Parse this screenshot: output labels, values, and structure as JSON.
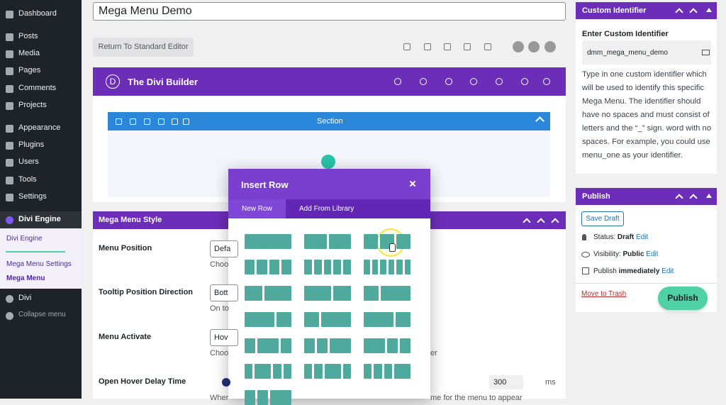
{
  "sidebar": {
    "items": [
      "Dashboard",
      "Posts",
      "Media",
      "Pages",
      "Comments",
      "Projects",
      "Appearance",
      "Plugins",
      "Users",
      "Tools",
      "Settings"
    ],
    "active": "Divi Engine",
    "submenu": [
      "Divi Engine",
      "Mega Menu Settings",
      "Mega Menu"
    ],
    "after": [
      "Divi",
      "Collapse menu"
    ]
  },
  "editor": {
    "post_title": "Mega Menu Demo",
    "return_button": "Return To Standard Editor",
    "builder_logo": "D",
    "builder_title": "The Divi Builder",
    "section_label": "Section"
  },
  "mega_menu_style": {
    "title": "Mega Menu Style",
    "fields": [
      {
        "label": "Menu Position",
        "select": "Defa",
        "help": "Choo"
      },
      {
        "label": "Tooltip Position Direction",
        "select": "Bott",
        "help": "On to"
      },
      {
        "label": "Menu Activate",
        "select": "Hov",
        "help": "Choo",
        "help_end": "er"
      },
      {
        "label": "Open Hover Delay Time",
        "value": "300",
        "unit": "ms",
        "help": "Wher",
        "help_end": "me for the menu to appear"
      }
    ]
  },
  "modal": {
    "title": "Insert Row",
    "tabs": [
      "New Row",
      "Add From Library"
    ]
  },
  "custom_identifier": {
    "title": "Custom Identifier",
    "field_label": "Enter Custom Identifier",
    "field_value": "dmm_mega_menu_demo",
    "description": "Type in one custom identifier which will be used to identify this specific Mega Menu. The identifier should have no spaces and must consist of letters and the “_” sign. word with no spaces. For example, you could use menu_one as your identifier."
  },
  "publish": {
    "title": "Publish",
    "save_draft": "Save Draft",
    "status_label": "Status:",
    "status_value": "Draft",
    "visibility_label": "Visibility:",
    "visibility_value": "Public",
    "schedule_label": "Publish",
    "schedule_value": "immediately",
    "edit": "Edit",
    "trash": "Move to Trash",
    "button": "Publish"
  }
}
